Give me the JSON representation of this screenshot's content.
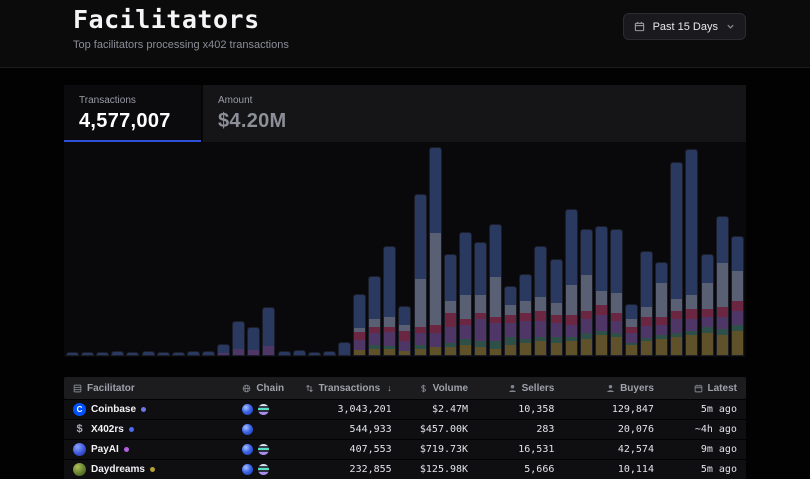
{
  "page": {
    "title": "Facilitators",
    "subtitle": "Top facilitators processing x402 transactions"
  },
  "date_filter": {
    "label": "Past 15 Days"
  },
  "tabs": [
    {
      "label": "Transactions",
      "value": "4,577,007",
      "active": true
    },
    {
      "label": "Amount",
      "value": "$4.20M",
      "active": false
    }
  ],
  "chart_data": {
    "type": "bar",
    "stacked": true,
    "orientation": "vertical",
    "title": "",
    "xlabel": "time over Past 15 Days (no tick labels shown)",
    "ylabel": "transactions per bucket (no tick labels shown)",
    "grid": false,
    "legend": false,
    "bar_count": 45,
    "value_unit": "relative height units (chart inner height = 213)",
    "series_bottom_to_top": [
      {
        "name": "olive",
        "color": "#5f5129",
        "values": [
          0,
          0,
          0,
          0,
          0,
          0,
          0,
          0,
          0,
          0,
          0,
          0,
          0,
          0,
          0,
          0,
          0,
          0,
          0,
          5,
          6,
          6,
          4,
          6,
          8,
          8,
          10,
          8,
          6,
          10,
          12,
          14,
          12,
          14,
          16,
          20,
          18,
          10,
          14,
          16,
          18,
          20,
          22,
          20,
          24
        ]
      },
      {
        "name": "teal",
        "color": "#2f4f49",
        "values": [
          0,
          0,
          0,
          0,
          0,
          0,
          0,
          0,
          0,
          0,
          0,
          0,
          0,
          0,
          0,
          0,
          0,
          0,
          0,
          0,
          4,
          3,
          0,
          4,
          0,
          4,
          6,
          6,
          8,
          8,
          4,
          4,
          6,
          4,
          6,
          4,
          4,
          2,
          3,
          4,
          4,
          4,
          6,
          6,
          6
        ]
      },
      {
        "name": "purple",
        "color": "#4e3766",
        "values": [
          0,
          0,
          0,
          0,
          0,
          0,
          0,
          0,
          0,
          0,
          2,
          6,
          5,
          9,
          0,
          0,
          0,
          0,
          0,
          10,
          12,
          14,
          10,
          12,
          14,
          16,
          14,
          22,
          18,
          14,
          18,
          16,
          14,
          12,
          14,
          16,
          12,
          10,
          12,
          10,
          14,
          12,
          10,
          12,
          14
        ]
      },
      {
        "name": "maroon",
        "color": "#6b2742",
        "values": [
          0,
          0,
          0,
          0,
          0,
          0,
          0,
          0,
          0,
          0,
          0,
          0,
          0,
          0,
          0,
          0,
          0,
          0,
          0,
          8,
          6,
          5,
          10,
          6,
          8,
          14,
          6,
          6,
          6,
          8,
          8,
          10,
          8,
          10,
          8,
          10,
          8,
          6,
          9,
          8,
          8,
          10,
          8,
          10,
          10
        ]
      },
      {
        "name": "slate",
        "color": "#5a6073",
        "values": [
          0,
          0,
          0,
          0,
          0,
          0,
          0,
          0,
          0,
          0,
          0,
          0,
          0,
          0,
          0,
          0,
          0,
          0,
          0,
          4,
          8,
          10,
          6,
          48,
          92,
          12,
          24,
          18,
          40,
          10,
          12,
          14,
          12,
          30,
          36,
          14,
          20,
          8,
          10,
          34,
          12,
          14,
          26,
          44,
          30
        ]
      },
      {
        "name": "navy",
        "color": "#2a3960",
        "values": [
          2,
          2,
          2,
          3,
          2,
          3,
          2,
          2,
          3,
          3,
          8,
          27,
          22,
          38,
          3,
          4,
          2,
          3,
          12,
          33,
          42,
          70,
          18,
          84,
          85,
          46,
          62,
          52,
          52,
          18,
          26,
          50,
          43,
          75,
          45,
          64,
          63,
          14,
          55,
          20,
          136,
          145,
          28,
          46,
          34
        ]
      }
    ]
  },
  "table": {
    "columns": [
      {
        "label": "Facilitator",
        "icon": "rows-icon",
        "align": "left"
      },
      {
        "label": "Chain",
        "icon": "globe-icon",
        "align": "left"
      },
      {
        "label": "Transactions",
        "icon": "sort-icon",
        "align": "right",
        "sorted": "desc"
      },
      {
        "label": "Volume",
        "icon": "dollar-icon",
        "align": "right"
      },
      {
        "label": "Sellers",
        "icon": "person-icon",
        "align": "right"
      },
      {
        "label": "Buyers",
        "icon": "person-icon",
        "align": "right"
      },
      {
        "label": "Latest",
        "icon": "calendar-icon",
        "align": "right"
      }
    ],
    "rows": [
      {
        "facilitator": "Coinbase",
        "logo": "coinbase",
        "logo_glyph": "C",
        "dot_color": "#6b76e8",
        "chains": [
          "base",
          "solana"
        ],
        "transactions": "3,043,201",
        "volume": "$2.47M",
        "sellers": "10,358",
        "buyers": "129,847",
        "latest": "5m ago"
      },
      {
        "facilitator": "X402rs",
        "logo": "x402rs",
        "logo_glyph": "$",
        "dot_color": "#4d6af2",
        "chains": [
          "base"
        ],
        "transactions": "544,933",
        "volume": "$457.00K",
        "sellers": "283",
        "buyers": "20,076",
        "latest": "~4h ago"
      },
      {
        "facilitator": "PayAI",
        "logo": "payai",
        "logo_glyph": "",
        "dot_color": "#b35fe0",
        "chains": [
          "base",
          "solana"
        ],
        "transactions": "407,553",
        "volume": "$719.73K",
        "sellers": "16,531",
        "buyers": "42,574",
        "latest": "9m ago"
      },
      {
        "facilitator": "Daydreams",
        "logo": "daydreams",
        "logo_glyph": "",
        "dot_color": "#b3a135",
        "chains": [
          "base",
          "solana"
        ],
        "transactions": "232,855",
        "volume": "$125.98K",
        "sellers": "5,666",
        "buyers": "10,114",
        "latest": "5m ago"
      }
    ]
  },
  "colors": {
    "accent_underline": "#2d50d6",
    "coinbase_blue": "#0052ff",
    "card_background": "#0b0b0e",
    "table_header_background": "#1c1c1f"
  }
}
